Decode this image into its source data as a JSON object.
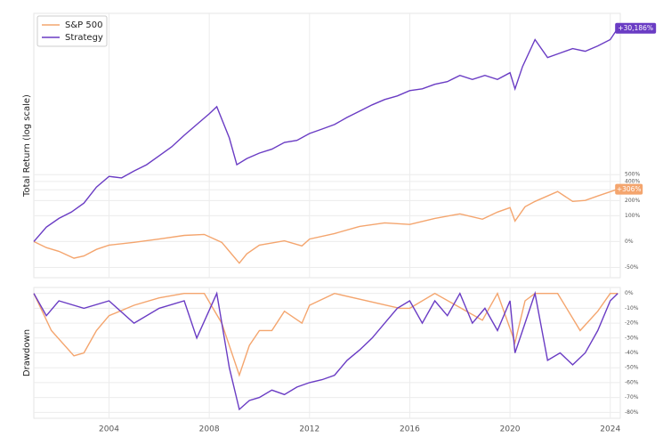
{
  "chart_data": [
    {
      "type": "line",
      "ylabel": "Total Return (log scale)",
      "log_scale": true,
      "grid": true,
      "legend": "upper left",
      "xlim": [
        2001,
        2024.4
      ],
      "xticks": [
        2004,
        2008,
        2012,
        2016,
        2020,
        2024
      ],
      "show_xtick_labels": false,
      "ylim": [
        -62,
        45000
      ],
      "yticks": [
        {
          "value": -50,
          "label": "-50%"
        },
        {
          "value": 0,
          "label": "0%"
        },
        {
          "value": 100,
          "label": "100%"
        },
        {
          "value": 200,
          "label": "200%"
        },
        {
          "value": 300,
          "label": "300%"
        },
        {
          "value": 400,
          "label": "400%"
        },
        {
          "value": 500,
          "label": "500%"
        }
      ],
      "series": [
        {
          "name": "S&P 500",
          "color": "#f4a56e",
          "x": [
            2001,
            2001.5,
            2002,
            2002.6,
            2003,
            2003.5,
            2004,
            2005,
            2006,
            2007,
            2007.8,
            2008.5,
            2009.2,
            2009.5,
            2010,
            2011,
            2011.7,
            2012,
            2013,
            2014,
            2015,
            2016,
            2017,
            2018,
            2018.9,
            2019.5,
            2020,
            2020.2,
            2020.6,
            2021,
            2021.9,
            2022.5,
            2023,
            2023.5,
            2024.3
          ],
          "values": [
            0,
            -15,
            -23,
            -36,
            -32,
            -19,
            -9,
            -2,
            7,
            18,
            21,
            -2,
            -44,
            -28,
            -9,
            2,
            -11,
            7,
            24,
            50,
            65,
            58,
            86,
            110,
            82,
            120,
            148,
            73,
            154,
            193,
            282,
            193,
            201,
            239,
            306
          ]
        },
        {
          "name": "Strategy",
          "color": "#6a3cc4",
          "x": [
            2001,
            2001.5,
            2002,
            2002.5,
            2003,
            2003.5,
            2004,
            2004.5,
            2005,
            2005.5,
            2006,
            2006.5,
            2007,
            2007.5,
            2008,
            2008.3,
            2008.8,
            2009.1,
            2009.5,
            2010,
            2010.5,
            2011,
            2011.5,
            2012,
            2012.5,
            2013,
            2013.5,
            2014,
            2014.5,
            2015,
            2015.5,
            2016,
            2016.5,
            2017,
            2017.5,
            2018,
            2018.5,
            2019,
            2019.5,
            2020,
            2020.2,
            2020.5,
            2021,
            2021.5,
            2022,
            2022.5,
            2023,
            2023.5,
            2024,
            2024.3
          ],
          "values": [
            0,
            47,
            86,
            120,
            180,
            330,
            473,
            450,
            562,
            682,
            894,
            1163,
            1623,
            2197,
            2960,
            3600,
            1504,
            682,
            825,
            968,
            1086,
            1324,
            1402,
            1708,
            1937,
            2197,
            2680,
            3189,
            3789,
            4390,
            4840,
            5600,
            5880,
            6640,
            7140,
            8460,
            7580,
            8460,
            7580,
            9090,
            5880,
            10770,
            22200,
            13700,
            15470,
            17440,
            16230,
            18740,
            22200,
            30186
          ]
        }
      ],
      "annotations": [
        {
          "label": "+306%",
          "x": 2024.3,
          "value": 306,
          "color": "#f4a56e"
        },
        {
          "label": "+30,186%",
          "x": 2024.3,
          "value": 30186,
          "color": "#6a3cc4"
        }
      ]
    },
    {
      "type": "line",
      "ylabel": "Drawdown",
      "grid": true,
      "xlim": [
        2001,
        2024.4
      ],
      "xticks": [
        2004,
        2008,
        2012,
        2016,
        2020,
        2024
      ],
      "ylim": [
        -84,
        4
      ],
      "yticks": [
        {
          "value": 0,
          "label": "0%"
        },
        {
          "value": -10,
          "label": "-10%"
        },
        {
          "value": -20,
          "label": "-20%"
        },
        {
          "value": -30,
          "label": "-30%"
        },
        {
          "value": -40,
          "label": "-40%"
        },
        {
          "value": -50,
          "label": "-50%"
        },
        {
          "value": -60,
          "label": "-60%"
        },
        {
          "value": -70,
          "label": "-70%"
        },
        {
          "value": -80,
          "label": "-80%"
        }
      ],
      "series": [
        {
          "name": "S&P 500",
          "color": "#f4a56e",
          "x": [
            2001,
            2001.7,
            2002.6,
            2003,
            2003.5,
            2004,
            2005,
            2006,
            2007,
            2007.8,
            2008.5,
            2009.2,
            2009.6,
            2010,
            2010.5,
            2011,
            2011.7,
            2012,
            2013,
            2015.6,
            2016,
            2017,
            2018.9,
            2019.5,
            2020.2,
            2020.6,
            2021,
            2021.9,
            2022.8,
            2023.5,
            2024,
            2024.3
          ],
          "values": [
            0,
            -25,
            -42,
            -40,
            -25,
            -15,
            -8,
            -3,
            0,
            0,
            -20,
            -55,
            -35,
            -25,
            -25,
            -12,
            -20,
            -8,
            0,
            -10,
            -10,
            0,
            -18,
            0,
            -33,
            -5,
            0,
            0,
            -25,
            -12,
            0,
            0
          ]
        },
        {
          "name": "Strategy",
          "color": "#6a3cc4",
          "x": [
            2001,
            2001.5,
            2002,
            2003,
            2004,
            2005,
            2006,
            2007,
            2007.5,
            2008.3,
            2008.8,
            2009.2,
            2009.6,
            2010,
            2010.5,
            2011,
            2011.5,
            2012,
            2012.5,
            2013,
            2013.5,
            2014,
            2014.5,
            2015,
            2015.5,
            2016,
            2016.5,
            2017,
            2017.5,
            2018,
            2018.5,
            2019,
            2019.5,
            2020,
            2020.2,
            2020.5,
            2021,
            2021.5,
            2022,
            2022.5,
            2023,
            2023.5,
            2024,
            2024.3
          ],
          "values": [
            0,
            -15,
            -5,
            -10,
            -5,
            -20,
            -10,
            -5,
            -30,
            0,
            -50,
            -78,
            -72,
            -70,
            -65,
            -68,
            -63,
            -60,
            -58,
            -55,
            -45,
            -38,
            -30,
            -20,
            -10,
            -5,
            -20,
            -5,
            -15,
            0,
            -20,
            -10,
            -25,
            -5,
            -40,
            -25,
            0,
            -45,
            -40,
            -48,
            -40,
            -25,
            -5,
            0
          ]
        }
      ]
    }
  ]
}
